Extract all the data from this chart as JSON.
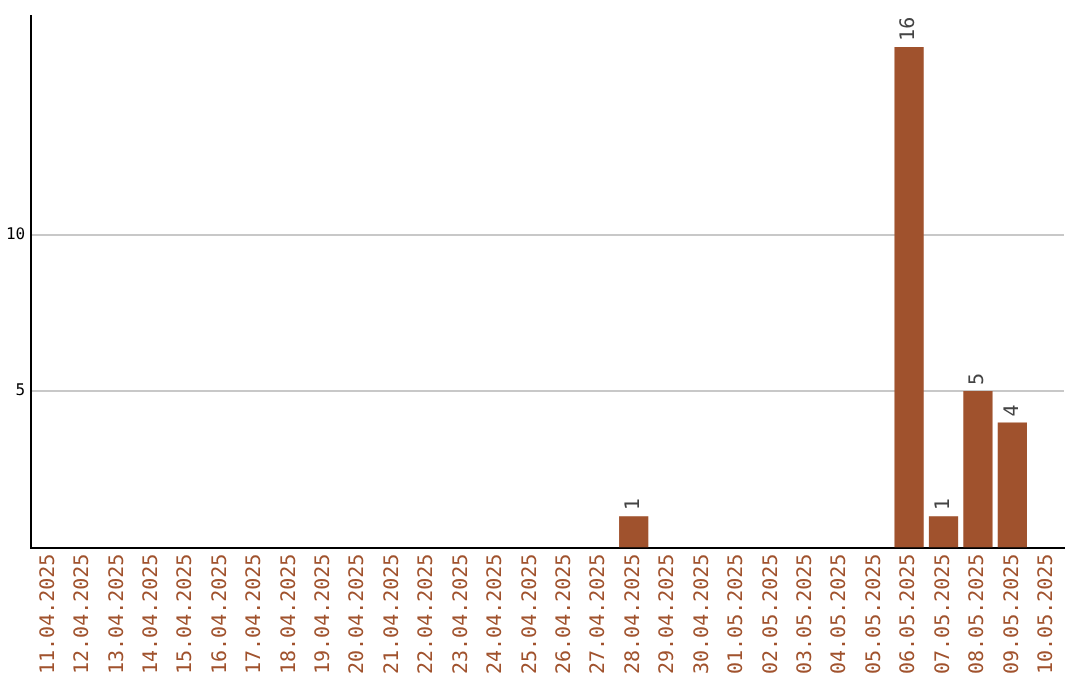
{
  "chart_data": {
    "type": "bar",
    "categories": [
      "11.04.2025",
      "12.04.2025",
      "13.04.2025",
      "14.04.2025",
      "15.04.2025",
      "16.04.2025",
      "17.04.2025",
      "18.04.2025",
      "19.04.2025",
      "20.04.2025",
      "21.04.2025",
      "22.04.2025",
      "23.04.2025",
      "24.04.2025",
      "25.04.2025",
      "26.04.2025",
      "27.04.2025",
      "28.04.2025",
      "29.04.2025",
      "30.04.2025",
      "01.05.2025",
      "02.05.2025",
      "03.05.2025",
      "04.05.2025",
      "05.05.2025",
      "06.05.2025",
      "07.05.2025",
      "08.05.2025",
      "09.05.2025",
      "10.05.2025"
    ],
    "values": [
      0,
      0,
      0,
      0,
      0,
      0,
      0,
      0,
      0,
      0,
      0,
      0,
      0,
      0,
      0,
      0,
      0,
      1,
      0,
      0,
      0,
      0,
      0,
      0,
      0,
      16,
      1,
      5,
      4,
      0
    ],
    "value_labels": [
      null,
      null,
      null,
      null,
      null,
      null,
      null,
      null,
      null,
      null,
      null,
      null,
      null,
      null,
      null,
      null,
      null,
      "1",
      null,
      null,
      null,
      null,
      null,
      null,
      null,
      "16",
      "1",
      "5",
      "4",
      null
    ],
    "color": "#a0522d",
    "ylim": [
      0,
      17
    ],
    "yticks": [
      5,
      10
    ],
    "grid": "y",
    "legend": false
  }
}
